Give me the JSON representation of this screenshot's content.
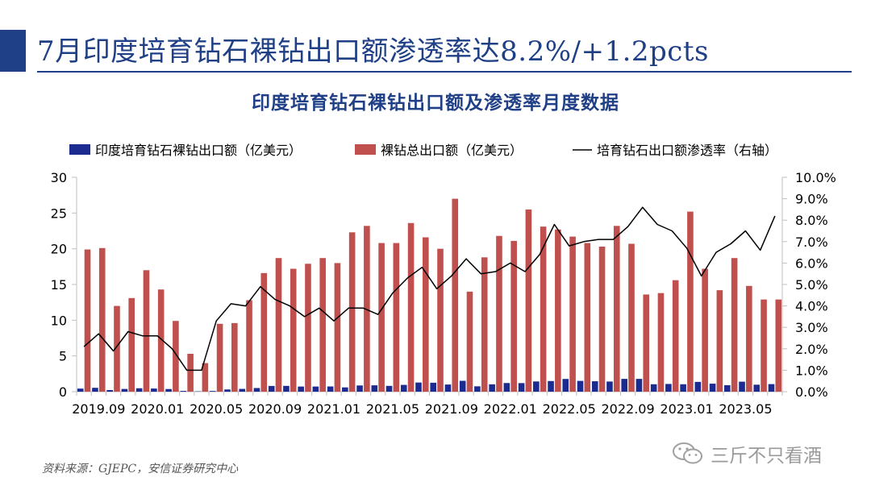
{
  "slide": {
    "title": "7月印度培育钻石裸钻出口额渗透率达8.2%/+1.2pcts",
    "source": "资料来源：GJEPC，安信证券研究中心",
    "watermark": "三斤不只看酒"
  },
  "colors": {
    "navy": "#1f3f86",
    "series1": "#1c2b8f",
    "series2": "#c0504d",
    "line": "#000000",
    "axis": "#bfbfbf"
  },
  "chart_data": {
    "type": "bar",
    "title": "印度培育钻石裸钻出口额及渗透率月度数据",
    "x": [
      "2019.08",
      "2019.09",
      "2019.10",
      "2019.11",
      "2019.12",
      "2020.01",
      "2020.02",
      "2020.03",
      "2020.04",
      "2020.05",
      "2020.06",
      "2020.07",
      "2020.08",
      "2020.09",
      "2020.10",
      "2020.11",
      "2020.12",
      "2021.01",
      "2021.02",
      "2021.03",
      "2021.04",
      "2021.05",
      "2021.06",
      "2021.07",
      "2021.08",
      "2021.09",
      "2021.10",
      "2021.11",
      "2021.12",
      "2022.01",
      "2022.02",
      "2022.03",
      "2022.04",
      "2022.05",
      "2022.06",
      "2022.07",
      "2022.08",
      "2022.09",
      "2022.10",
      "2022.11",
      "2022.12",
      "2023.01",
      "2023.02",
      "2023.03",
      "2023.04",
      "2023.05",
      "2023.06",
      "2023.07"
    ],
    "x_tick_labels": [
      "2019.09",
      "2020.01",
      "2020.05",
      "2020.09",
      "2021.01",
      "2021.05",
      "2021.09",
      "2022.01",
      "2022.05",
      "2022.09",
      "2023.01",
      "2023.05"
    ],
    "ylim_left": [
      0,
      30
    ],
    "yticks_left": [
      "0",
      "5",
      "10",
      "15",
      "20",
      "25",
      "30"
    ],
    "ylim_right": [
      0,
      10
    ],
    "yticks_right": [
      "0.0%",
      "1.0%",
      "2.0%",
      "3.0%",
      "4.0%",
      "5.0%",
      "6.0%",
      "7.0%",
      "8.0%",
      "9.0%",
      "10.0%"
    ],
    "legend_position": "top",
    "series": [
      {
        "name": "印度培育钻石裸钻出口额（亿美元）",
        "type": "bar",
        "axis": "left",
        "values": [
          0.43,
          0.54,
          0.23,
          0.38,
          0.48,
          0.44,
          0.37,
          0.11,
          0.05,
          0.1,
          0.31,
          0.39,
          0.51,
          0.8,
          0.81,
          0.72,
          0.72,
          0.73,
          0.6,
          0.87,
          0.89,
          0.81,
          0.95,
          1.28,
          1.25,
          1.0,
          1.52,
          0.75,
          1.03,
          1.21,
          1.2,
          1.43,
          1.49,
          1.78,
          1.51,
          1.46,
          1.42,
          1.79,
          1.79,
          1.04,
          1.08,
          1.04,
          1.37,
          1.12,
          0.91,
          1.4,
          0.98,
          1.06
        ]
      },
      {
        "name": "裸钻总出口额（亿美元）",
        "type": "bar",
        "axis": "left",
        "values": [
          19.9,
          20.1,
          12.0,
          13.1,
          17.0,
          14.3,
          9.9,
          5.3,
          4.0,
          9.5,
          9.6,
          12.8,
          16.6,
          18.7,
          17.2,
          17.9,
          18.7,
          18.0,
          22.3,
          23.2,
          20.8,
          20.8,
          23.6,
          21.6,
          20.0,
          27.0,
          14.0,
          18.8,
          21.8,
          21.1,
          25.5,
          23.1,
          22.7,
          21.7,
          20.8,
          20.3,
          23.2,
          20.7,
          13.6,
          13.8,
          15.6,
          25.2,
          17.2,
          14.2,
          18.7,
          14.8,
          12.9,
          12.9
        ]
      },
      {
        "name": "培育钻石出口额渗透率（右轴）",
        "type": "line",
        "axis": "right",
        "values": [
          2.1,
          2.7,
          1.9,
          2.8,
          2.6,
          2.6,
          2.0,
          1.0,
          1.0,
          3.3,
          4.1,
          4.0,
          4.9,
          4.3,
          4.0,
          3.5,
          3.9,
          3.3,
          3.9,
          3.9,
          3.6,
          4.6,
          5.3,
          5.8,
          4.8,
          5.4,
          6.2,
          5.5,
          5.6,
          6.0,
          5.6,
          6.4,
          7.8,
          6.8,
          7.0,
          7.1,
          7.1,
          7.7,
          8.6,
          7.8,
          7.5,
          6.7,
          5.4,
          6.5,
          6.9,
          7.5,
          6.6,
          8.2
        ]
      }
    ]
  }
}
